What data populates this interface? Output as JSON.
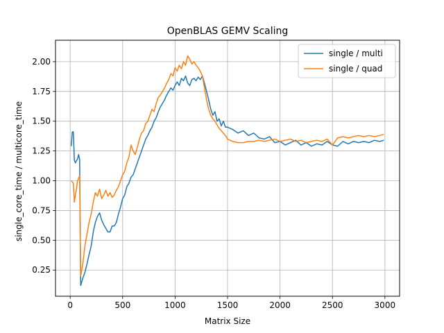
{
  "chart_data": {
    "type": "line",
    "title": "OpenBLAS GEMV Scaling",
    "xlabel": "Matrix Size",
    "ylabel": "single_core_time / multicore_time",
    "xlim": [
      -140,
      3140
    ],
    "ylim": [
      0.03,
      2.18
    ],
    "xticks": [
      0,
      500,
      1000,
      1500,
      2000,
      2500,
      3000
    ],
    "yticks": [
      0.25,
      0.5,
      0.75,
      1.0,
      1.25,
      1.5,
      1.75,
      2.0
    ],
    "ytick_labels": [
      "0.25",
      "0.50",
      "0.75",
      "1.00",
      "1.25",
      "1.50",
      "1.75",
      "2.00"
    ],
    "grid": true,
    "legend_position": "top-right",
    "series": [
      {
        "name": "single / multi",
        "color": "#1f77b4",
        "x": [
          10,
          20,
          30,
          40,
          50,
          60,
          70,
          80,
          90,
          100,
          120,
          140,
          160,
          180,
          200,
          220,
          240,
          260,
          280,
          300,
          320,
          340,
          360,
          380,
          400,
          420,
          440,
          460,
          480,
          500,
          520,
          540,
          560,
          580,
          600,
          620,
          640,
          660,
          680,
          700,
          720,
          740,
          760,
          780,
          800,
          820,
          840,
          860,
          880,
          900,
          920,
          940,
          960,
          980,
          1000,
          1020,
          1040,
          1060,
          1080,
          1100,
          1120,
          1140,
          1160,
          1180,
          1200,
          1220,
          1240,
          1260,
          1280,
          1300,
          1320,
          1340,
          1360,
          1380,
          1400,
          1420,
          1440,
          1460,
          1480,
          1500,
          1550,
          1600,
          1650,
          1700,
          1750,
          1800,
          1850,
          1900,
          1950,
          2000,
          2050,
          2100,
          2150,
          2200,
          2250,
          2300,
          2350,
          2400,
          2450,
          2500,
          2550,
          2600,
          2650,
          2700,
          2750,
          2800,
          2850,
          2900,
          2950,
          2990
        ],
        "y": [
          1.29,
          1.41,
          1.41,
          1.17,
          1.15,
          1.17,
          1.18,
          1.22,
          1.18,
          0.12,
          0.18,
          0.23,
          0.3,
          0.38,
          0.45,
          0.57,
          0.65,
          0.7,
          0.73,
          0.67,
          0.63,
          0.6,
          0.57,
          0.57,
          0.62,
          0.62,
          0.65,
          0.72,
          0.78,
          0.85,
          0.88,
          0.95,
          0.98,
          1.03,
          1.05,
          1.1,
          1.15,
          1.2,
          1.25,
          1.3,
          1.35,
          1.38,
          1.42,
          1.45,
          1.5,
          1.53,
          1.58,
          1.62,
          1.65,
          1.68,
          1.72,
          1.75,
          1.78,
          1.76,
          1.8,
          1.83,
          1.8,
          1.86,
          1.84,
          1.88,
          1.82,
          1.8,
          1.85,
          1.86,
          1.84,
          1.87,
          1.85,
          1.88,
          1.82,
          1.75,
          1.68,
          1.6,
          1.55,
          1.58,
          1.5,
          1.52,
          1.46,
          1.5,
          1.45,
          1.45,
          1.43,
          1.4,
          1.42,
          1.38,
          1.4,
          1.36,
          1.35,
          1.37,
          1.32,
          1.33,
          1.3,
          1.32,
          1.34,
          1.3,
          1.32,
          1.29,
          1.31,
          1.3,
          1.33,
          1.3,
          1.29,
          1.33,
          1.31,
          1.33,
          1.32,
          1.33,
          1.32,
          1.34,
          1.33,
          1.34
        ]
      },
      {
        "name": "single / quad",
        "color": "#ff7f0e",
        "x": [
          10,
          20,
          30,
          40,
          50,
          60,
          70,
          80,
          90,
          100,
          120,
          140,
          160,
          180,
          200,
          220,
          240,
          260,
          280,
          300,
          320,
          340,
          360,
          380,
          400,
          420,
          440,
          460,
          480,
          500,
          520,
          540,
          560,
          580,
          600,
          620,
          640,
          660,
          680,
          700,
          720,
          740,
          760,
          780,
          800,
          820,
          840,
          860,
          880,
          900,
          920,
          940,
          960,
          980,
          1000,
          1020,
          1040,
          1060,
          1080,
          1100,
          1120,
          1140,
          1160,
          1180,
          1200,
          1220,
          1240,
          1260,
          1280,
          1300,
          1320,
          1340,
          1360,
          1380,
          1400,
          1420,
          1440,
          1460,
          1480,
          1500,
          1550,
          1600,
          1650,
          1700,
          1750,
          1800,
          1850,
          1900,
          1950,
          2000,
          2050,
          2100,
          2150,
          2200,
          2250,
          2300,
          2350,
          2400,
          2450,
          2500,
          2550,
          2600,
          2650,
          2700,
          2750,
          2800,
          2850,
          2900,
          2950,
          2990
        ],
        "y": [
          1.0,
          0.99,
          0.98,
          0.82,
          0.88,
          0.93,
          1.0,
          1.02,
          1.04,
          0.2,
          0.3,
          0.45,
          0.55,
          0.65,
          0.72,
          0.82,
          0.9,
          0.87,
          0.93,
          0.85,
          0.88,
          0.92,
          0.87,
          0.9,
          0.86,
          0.88,
          0.92,
          0.95,
          1.0,
          1.05,
          1.08,
          1.15,
          1.2,
          1.3,
          1.25,
          1.22,
          1.28,
          1.35,
          1.4,
          1.42,
          1.48,
          1.5,
          1.55,
          1.6,
          1.58,
          1.65,
          1.7,
          1.72,
          1.75,
          1.78,
          1.82,
          1.85,
          1.9,
          1.88,
          1.95,
          1.92,
          1.97,
          1.94,
          2.0,
          1.97,
          2.05,
          2.02,
          1.98,
          2.0,
          1.97,
          1.95,
          1.92,
          1.88,
          1.78,
          1.68,
          1.6,
          1.55,
          1.52,
          1.5,
          1.47,
          1.44,
          1.42,
          1.4,
          1.38,
          1.35,
          1.33,
          1.32,
          1.32,
          1.33,
          1.33,
          1.34,
          1.33,
          1.34,
          1.35,
          1.33,
          1.34,
          1.35,
          1.33,
          1.34,
          1.32,
          1.33,
          1.34,
          1.33,
          1.35,
          1.3,
          1.36,
          1.37,
          1.36,
          1.37,
          1.38,
          1.37,
          1.38,
          1.37,
          1.38,
          1.39
        ]
      }
    ]
  }
}
